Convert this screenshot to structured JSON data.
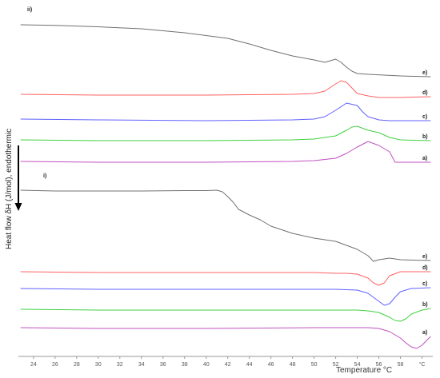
{
  "chart_data": {
    "type": "line",
    "xlabel": "Temperature °C",
    "ylabel": "Heat flow δH (J/mol), endothermic",
    "xlim": [
      22.6,
      61
    ],
    "x_ticks": [
      "24",
      "26",
      "28",
      "30",
      "32",
      "34",
      "36",
      "38",
      "40",
      "42",
      "44",
      "46",
      "48",
      "50",
      "52",
      "54",
      "56",
      "58",
      "°C"
    ],
    "x_tick_values": [
      24,
      26,
      28,
      30,
      32,
      34,
      36,
      38,
      40,
      42,
      44,
      46,
      48,
      50,
      52,
      54,
      56,
      58,
      60
    ],
    "panels": [
      {
        "label": "ii)",
        "series": [
          {
            "name": "e)",
            "color": "#707070",
            "x": [
              22.8,
              26,
              30,
              34,
              38,
              42,
              44,
              46,
              48,
              50,
              51,
              51.5,
              52,
              52.5,
              53,
              53.5,
              54,
              55,
              58,
              60.8
            ],
            "y": [
              31,
              31.8,
              33.5,
              36,
              41,
              48,
              55,
              63,
              70,
              75,
              78,
              76,
              74,
              78,
              84,
              89,
              92,
              93,
              95,
              96
            ]
          },
          {
            "name": "d)",
            "color": "#ff6060",
            "x": [
              22.8,
              30,
              40,
              48,
              50,
              51,
              52,
              52.5,
              53,
              53.5,
              54,
              55,
              56,
              58,
              60.8
            ],
            "y": [
              118,
              119,
              119,
              118,
              117,
              114,
              105,
              101,
              103,
              110,
              117,
              120,
              122,
              122,
              121
            ]
          },
          {
            "name": "c)",
            "color": "#6060ff",
            "x": [
              22.8,
              30,
              40,
              48,
              50,
              51,
              52,
              53,
              54,
              54.5,
              55,
              55.5,
              56,
              57,
              58,
              60.8
            ],
            "y": [
              149,
              150,
              151,
              150,
              149,
              146,
              138,
              129,
              132,
              140,
              146,
              148,
              150,
              151,
              151,
              151
            ]
          },
          {
            "name": "b)",
            "color": "#40d040",
            "x": [
              22.8,
              30,
              40,
              48,
              50,
              52,
              53,
              53.5,
              54,
              55,
              56,
              57,
              58,
              60.8
            ],
            "y": [
              175,
              176,
              176,
              175,
              174,
              170,
              163,
              159,
              158,
              163,
              166,
              172,
              175,
              176
            ]
          },
          {
            "name": "a)",
            "color": "#c050c0",
            "x": [
              22.8,
              30,
              40,
              48,
              50,
              52,
              53,
              54,
              55,
              56,
              56.5,
              57,
              57.5,
              60.8
            ],
            "y": [
              202,
              203,
              203,
              202,
              201,
              198,
              192,
              184,
              177,
              182,
              186,
              190,
              203,
              203
            ]
          }
        ]
      },
      {
        "label": "i)",
        "series": [
          {
            "name": "e)",
            "color": "#707070",
            "x": [
              22.8,
              26,
              30,
              34,
              38,
              40,
              41,
              41.5,
              42,
              42.5,
              43,
              44,
              45,
              46,
              48,
              50,
              52,
              54,
              55,
              55.5,
              56,
              57,
              58,
              60.8
            ],
            "y": [
              238,
              239,
              239,
              239,
              238.5,
              238.5,
              238,
              240,
              246,
              253,
              262,
              269,
              275,
              283,
              292,
              298,
              302,
              312,
              320,
              327,
              325,
              323,
              325,
              326
            ]
          },
          {
            "name": "d)",
            "color": "#ff6060",
            "x": [
              22.8,
              30,
              40,
              50,
              52,
              53,
              54,
              55,
              55.5,
              56,
              56.5,
              57,
              58,
              60.8
            ],
            "y": [
              340,
              341,
              341,
              341,
              342,
              342,
              343,
              348,
              354,
              357,
              354,
              345,
              340,
              340
            ]
          },
          {
            "name": "c)",
            "color": "#6060ff",
            "x": [
              22.8,
              30,
              40,
              50,
              52,
              54,
              55,
              56,
              56.5,
              57,
              57.5,
              58,
              59,
              60.8
            ],
            "y": [
              361,
              362,
              362,
              362,
              362,
              363,
              367,
              377,
              382,
              380,
              372,
              365,
              361,
              360
            ]
          },
          {
            "name": "b)",
            "color": "#40d040",
            "x": [
              22.8,
              30,
              40,
              50,
              54,
              55,
              56,
              57,
              57.5,
              58,
              58.5,
              59,
              60,
              60.8
            ],
            "y": [
              387,
              388,
              388,
              388,
              388,
              389,
              391,
              397,
              401,
              402,
              399,
              393,
              388,
              386
            ]
          },
          {
            "name": "a)",
            "color": "#c050c0",
            "x": [
              22.8,
              30,
              40,
              50,
              55,
              56,
              57,
              58,
              58.5,
              59,
              59.5,
              60,
              60.5,
              60.8
            ],
            "y": [
              410,
              411,
              411,
              410,
              410,
              411,
              415,
              423,
              429,
              434,
              436,
              432,
              425,
              421
            ]
          }
        ]
      }
    ]
  }
}
